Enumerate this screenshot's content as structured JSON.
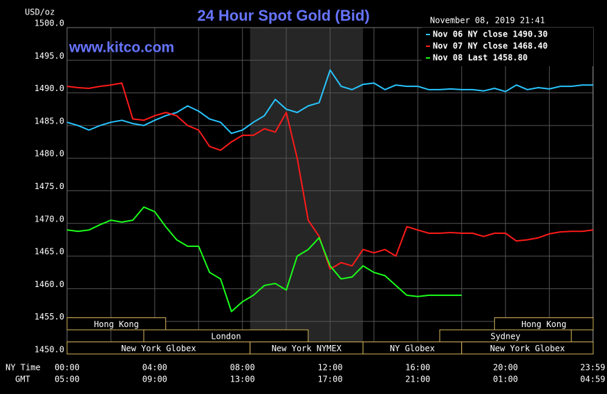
{
  "chart_data": {
    "type": "line",
    "title": "24 Hour Spot Gold (Bid)",
    "site": "www.kitco.com",
    "unit_label": "USD/oz",
    "timestamp": "November 08, 2019 21:41",
    "x_row_label": "NY Time",
    "x2_row_label": "GMT",
    "x": [
      0,
      0.5,
      1,
      1.5,
      2,
      2.5,
      3,
      3.5,
      4,
      4.5,
      5,
      5.5,
      6,
      6.5,
      7,
      7.5,
      8,
      8.5,
      9,
      9.5,
      10,
      10.5,
      11,
      11.5,
      12,
      12.5,
      13,
      13.5,
      14,
      14.5,
      15,
      15.5,
      16,
      16.5,
      17,
      17.5,
      18,
      18.5,
      19,
      19.5,
      20,
      20.5,
      21,
      21.5,
      22,
      22.5,
      23,
      23.5,
      24
    ],
    "series": [
      {
        "name": "Nov 06 NY close 1490.30",
        "color": "#29c5ff",
        "values": [
          1485.5,
          1485,
          1484.3,
          1485,
          1485.5,
          1485.8,
          1485.3,
          1485,
          1485.8,
          1486.5,
          1487,
          1488,
          1487.2,
          1486,
          1485.5,
          1483.8,
          1484.3,
          1485.5,
          1486.5,
          1489,
          1487.5,
          1487,
          1488,
          1488.5,
          1493.5,
          1491,
          1490.5,
          1491.3,
          1491.5,
          1490.5,
          1491.2,
          1491,
          1491,
          1490.5,
          1490.5,
          1490.6,
          1490.5,
          1490.5,
          1490.3,
          1490.7,
          1490.2,
          1491.2,
          1490.5,
          1490.8,
          1490.6,
          1491,
          1491,
          1491.2,
          1491.2
        ]
      },
      {
        "name": "Nov 07 NY close 1468.40",
        "color": "#ff1a1a",
        "values": [
          1491,
          1490.8,
          1490.7,
          1491,
          1491.2,
          1491.5,
          1486,
          1485.8,
          1486.5,
          1487,
          1486.5,
          1485,
          1484.3,
          1481.8,
          1481.2,
          1482.5,
          1483.5,
          1483.5,
          1484.5,
          1484,
          1487,
          1480,
          1470.5,
          1468,
          1463,
          1464,
          1463.5,
          1466,
          1465.5,
          1466,
          1465,
          1469.5,
          1469,
          1468.5,
          1468.5,
          1468.6,
          1468.5,
          1468.5,
          1468,
          1468.5,
          1468.5,
          1467.3,
          1467.5,
          1467.8,
          1468.4,
          1468.7,
          1468.8,
          1468.8,
          1469
        ]
      },
      {
        "name": "Nov 08 Last 1458.80",
        "color": "#1aff1a",
        "values": [
          1469,
          1468.8,
          1469,
          1469.8,
          1470.5,
          1470.2,
          1470.5,
          1472.5,
          1471.8,
          1469.5,
          1467.5,
          1466.5,
          1466.5,
          1462.5,
          1461.5,
          1456.5,
          1458,
          1459,
          1460.5,
          1460.8,
          1459.8,
          1465,
          1466,
          1467.8,
          1463.5,
          1461.5,
          1461.8,
          1463.5,
          1462.5,
          1462,
          1460.5,
          1459,
          1458.8,
          1459,
          1459,
          1459,
          1459,
          null,
          null,
          null,
          null,
          null,
          null,
          null,
          null,
          null,
          null,
          null,
          null
        ]
      }
    ],
    "xlim": [
      0,
      24
    ],
    "xticks": [
      {
        "value": 0,
        "label": "00:00"
      },
      {
        "value": 4,
        "label": "04:00"
      },
      {
        "value": 8,
        "label": "08:00"
      },
      {
        "value": 12,
        "label": "12:00"
      },
      {
        "value": 16,
        "label": "16:00"
      },
      {
        "value": 20,
        "label": "20:00"
      },
      {
        "value": 23.98,
        "label": "23:59"
      }
    ],
    "x2ticks": [
      "05:00",
      "09:00",
      "13:00",
      "17:00",
      "21:00",
      "01:00",
      "04:59"
    ],
    "xgrid_minor": [
      2,
      6,
      10,
      14,
      18,
      22
    ],
    "ylim": [
      1450,
      1500
    ],
    "yticks": [
      {
        "value": 1450,
        "label": "1450.0"
      },
      {
        "value": 1455,
        "label": "1455.0"
      },
      {
        "value": 1460,
        "label": "1460.0"
      },
      {
        "value": 1465,
        "label": "1465.0"
      },
      {
        "value": 1470,
        "label": "1470.0"
      },
      {
        "value": 1475,
        "label": "1475.0"
      },
      {
        "value": 1480,
        "label": "1480.0"
      },
      {
        "value": 1485,
        "label": "1485.0"
      },
      {
        "value": 1490,
        "label": "1490.0"
      },
      {
        "value": 1495,
        "label": "1495.0"
      },
      {
        "value": 1500,
        "label": "1500.0"
      }
    ],
    "grid": true,
    "shade": [
      8.35,
      13.5
    ],
    "sessions": [
      [
        {
          "label": "Hong Kong",
          "start": 0,
          "end": 4.5
        },
        {
          "label": "Hong Kong",
          "start": 19.5,
          "end": 24
        }
      ],
      [
        {
          "label": "London",
          "start": 3.5,
          "end": 11
        },
        {
          "label": "Sydney",
          "start": 17,
          "end": 23
        }
      ],
      [
        {
          "label": "New York Globex",
          "start": 0,
          "end": 8.35
        },
        {
          "label": "New York NYMEX",
          "start": 8.35,
          "end": 13.5
        },
        {
          "label": "NY Globex",
          "start": 13.5,
          "end": 18
        },
        {
          "label": "New York Globex",
          "start": 18,
          "end": 24
        }
      ]
    ]
  }
}
